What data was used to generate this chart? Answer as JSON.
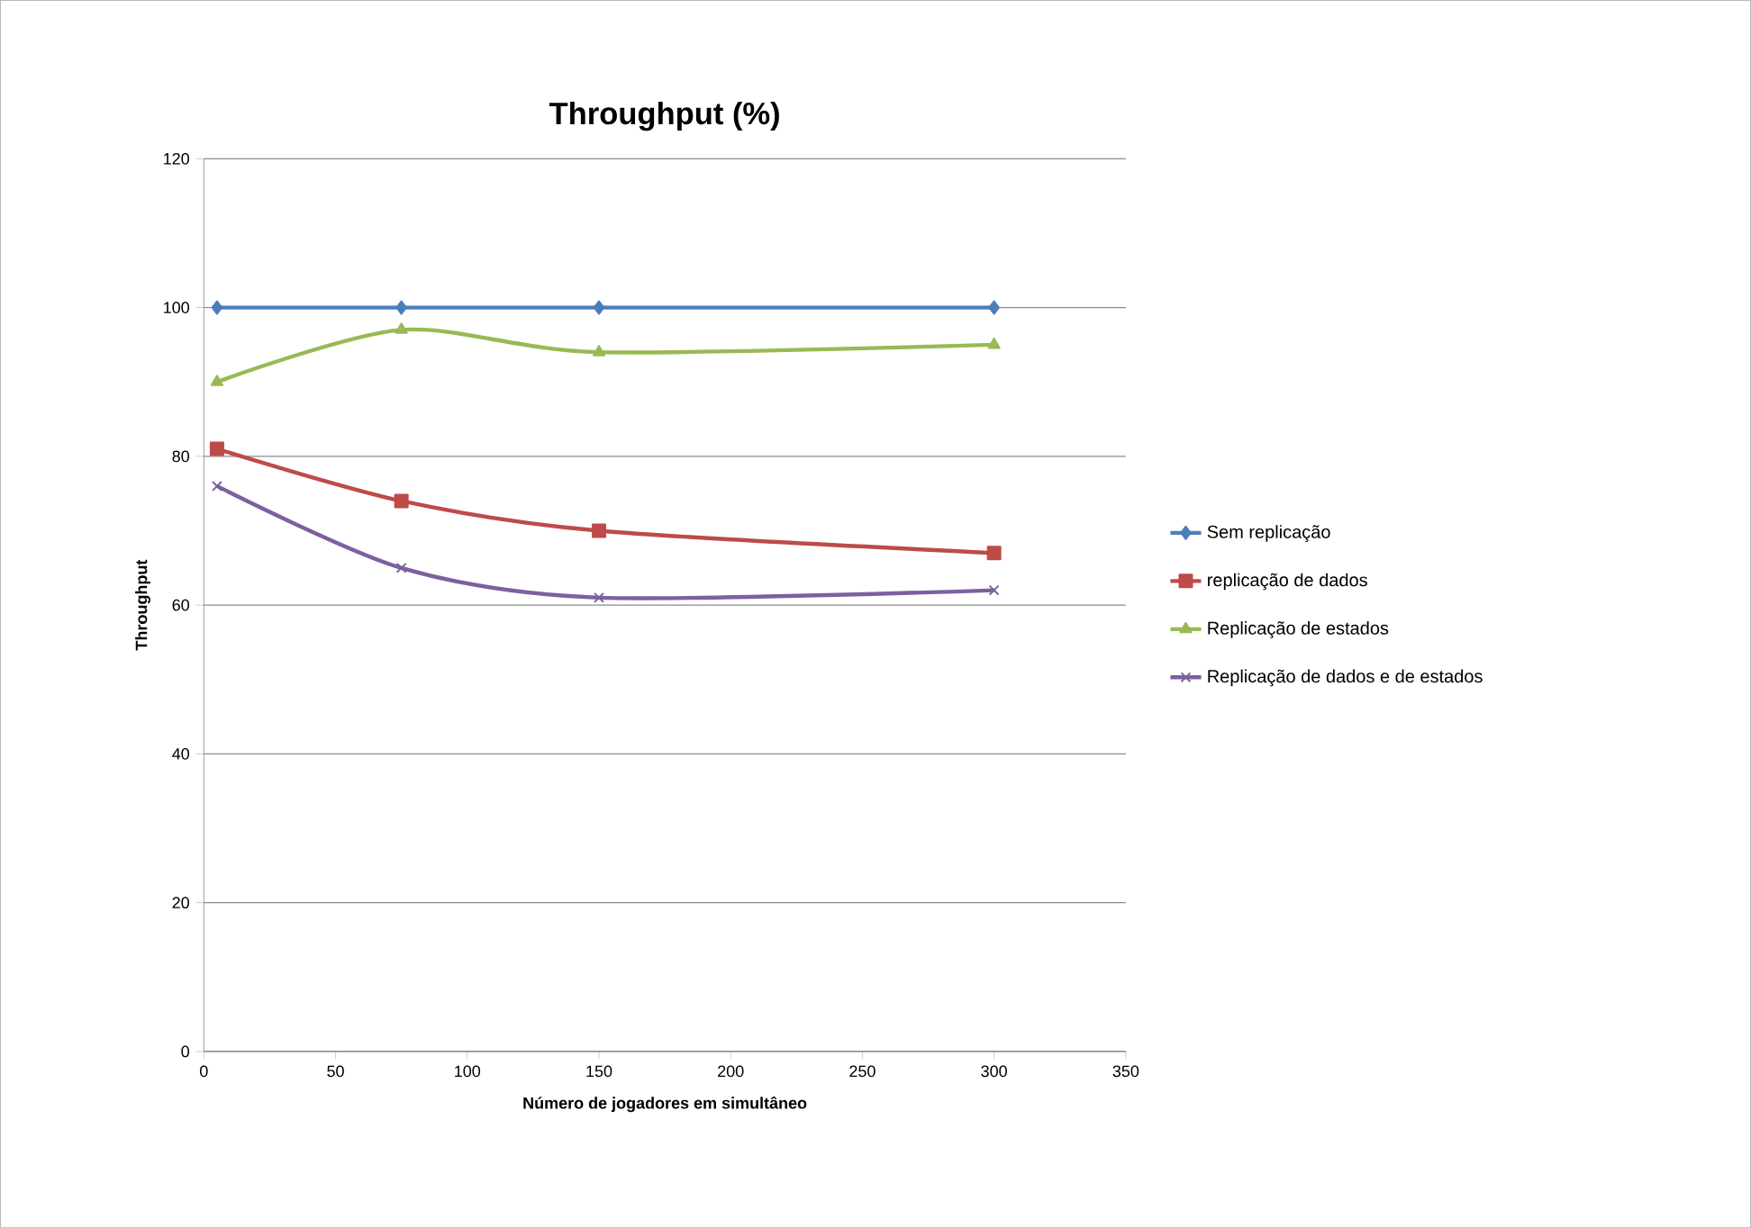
{
  "chart_data": {
    "type": "line",
    "title": "Throughput (%)",
    "xlabel": "Número de jogadores  em simultâneo",
    "ylabel": "Throughput",
    "x": [
      5,
      75,
      150,
      300
    ],
    "series": [
      {
        "name": "Sem replicação",
        "color": "#4a7ebb",
        "marker": "diamond",
        "values": [
          100,
          100,
          100,
          100
        ]
      },
      {
        "name": "replicação de dados",
        "color": "#be4b48",
        "marker": "square",
        "values": [
          81,
          74,
          70,
          67
        ]
      },
      {
        "name": "Replicação de estados",
        "color": "#98b954",
        "marker": "triangle",
        "values": [
          90,
          97,
          94,
          95
        ]
      },
      {
        "name": "Replicação de dados e de estados",
        "color": "#7d60a0",
        "marker": "cross",
        "values": [
          76,
          65,
          61,
          62
        ]
      }
    ],
    "xlim": [
      0,
      350
    ],
    "xticks": [
      0,
      50,
      100,
      150,
      200,
      250,
      300,
      350
    ],
    "ylim": [
      0,
      120
    ],
    "yticks": [
      0,
      20,
      40,
      60,
      80,
      100,
      120
    ],
    "grid": "y",
    "legend": "right",
    "line_style": "solid"
  }
}
